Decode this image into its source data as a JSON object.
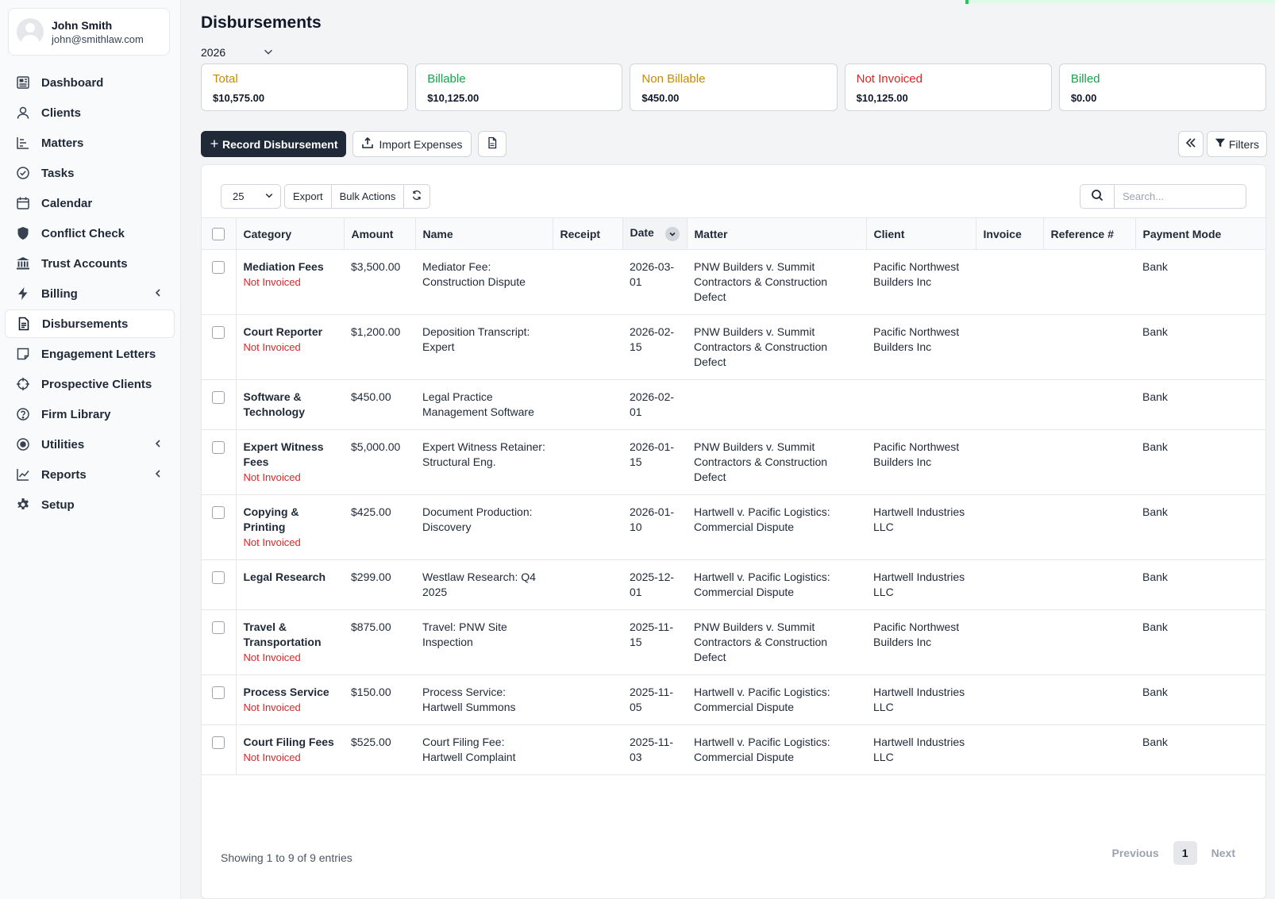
{
  "user": {
    "name": "John Smith",
    "email": "john@smithlaw.com"
  },
  "nav": [
    {
      "label": "Dashboard",
      "icon": "dashboard-icon"
    },
    {
      "label": "Clients",
      "icon": "user-icon"
    },
    {
      "label": "Matters",
      "icon": "matters-icon"
    },
    {
      "label": "Tasks",
      "icon": "check-circle-icon"
    },
    {
      "label": "Calendar",
      "icon": "calendar-icon"
    },
    {
      "label": "Conflict Check",
      "icon": "shield-icon"
    },
    {
      "label": "Trust Accounts",
      "icon": "bank-icon"
    },
    {
      "label": "Billing",
      "icon": "bolt-icon",
      "chevron": true
    },
    {
      "label": "Disbursements",
      "icon": "document-icon",
      "active": true
    },
    {
      "label": "Engagement Letters",
      "icon": "note-icon"
    },
    {
      "label": "Prospective Clients",
      "icon": "crosshair-icon"
    },
    {
      "label": "Firm Library",
      "icon": "help-circle-icon"
    },
    {
      "label": "Utilities",
      "icon": "target-icon",
      "chevron": true
    },
    {
      "label": "Reports",
      "icon": "line-chart-icon",
      "chevron": true
    },
    {
      "label": "Setup",
      "icon": "gear-icon"
    }
  ],
  "page": {
    "title": "Disbursements",
    "year": "2026"
  },
  "stats": [
    {
      "label": "Total",
      "value": "$10,575.00",
      "color": "#ca8a04"
    },
    {
      "label": "Billable",
      "value": "$10,125.00",
      "color": "#16a34a"
    },
    {
      "label": "Non Billable",
      "value": "$450.00",
      "color": "#ca8a04"
    },
    {
      "label": "Not Invoiced",
      "value": "$10,125.00",
      "color": "#dc2626"
    },
    {
      "label": "Billed",
      "value": "$0.00",
      "color": "#16a34a"
    }
  ],
  "toolbar": {
    "record_label": "Record Disbursement",
    "import_label": "Import Expenses",
    "filters_label": "Filters"
  },
  "table_tools": {
    "page_length": "25",
    "export_label": "Export",
    "bulk_label": "Bulk Actions",
    "search_placeholder": "Search..."
  },
  "columns": [
    "Category",
    "Amount",
    "Name",
    "Receipt",
    "Date",
    "Matter",
    "Client",
    "Invoice",
    "Reference #",
    "Payment Mode"
  ],
  "rows": [
    {
      "category": "Mediation Fees",
      "status": "Not Invoiced",
      "amount": "$3,500.00",
      "name": "Mediator Fee: Construction Dispute",
      "receipt": "",
      "date": "2026-03-01",
      "matter": "PNW Builders v. Summit Contractors & Construction Defect",
      "client": "Pacific Northwest Builders Inc",
      "invoice": "",
      "reference": "",
      "payment_mode": "Bank"
    },
    {
      "category": "Court Reporter",
      "status": "Not Invoiced",
      "amount": "$1,200.00",
      "name": "Deposition Transcript: Expert",
      "receipt": "",
      "date": "2026-02-15",
      "matter": "PNW Builders v. Summit Contractors & Construction Defect",
      "client": "Pacific Northwest Builders Inc",
      "invoice": "",
      "reference": "",
      "payment_mode": "Bank"
    },
    {
      "category": "Software & Technology",
      "status": "",
      "amount": "$450.00",
      "name": "Legal Practice Management Software",
      "receipt": "",
      "date": "2026-02-01",
      "matter": "",
      "client": "",
      "invoice": "",
      "reference": "",
      "payment_mode": "Bank"
    },
    {
      "category": "Expert Witness Fees",
      "status": "Not Invoiced",
      "amount": "$5,000.00",
      "name": "Expert Witness Retainer: Structural Eng.",
      "receipt": "",
      "date": "2026-01-15",
      "matter": "PNW Builders v. Summit Contractors & Construction Defect",
      "client": "Pacific Northwest Builders Inc",
      "invoice": "",
      "reference": "",
      "payment_mode": "Bank"
    },
    {
      "category": "Copying & Printing",
      "status": "Not Invoiced",
      "amount": "$425.00",
      "name": "Document Production: Discovery",
      "receipt": "",
      "date": "2026-01-10",
      "matter": "Hartwell v. Pacific Logistics: Commercial Dispute",
      "client": "Hartwell Industries LLC",
      "invoice": "",
      "reference": "",
      "payment_mode": "Bank"
    },
    {
      "category": "Legal Research",
      "status": "",
      "amount": "$299.00",
      "name": "Westlaw Research: Q4 2025",
      "receipt": "",
      "date": "2025-12-01",
      "matter": "Hartwell v. Pacific Logistics: Commercial Dispute",
      "client": "Hartwell Industries LLC",
      "invoice": "",
      "reference": "",
      "payment_mode": "Bank"
    },
    {
      "category": "Travel & Transportation",
      "status": "Not Invoiced",
      "amount": "$875.00",
      "name": "Travel: PNW Site Inspection",
      "receipt": "",
      "date": "2025-11-15",
      "matter": "PNW Builders v. Summit Contractors & Construction Defect",
      "client": "Pacific Northwest Builders Inc",
      "invoice": "",
      "reference": "",
      "payment_mode": "Bank"
    },
    {
      "category": "Process Service",
      "status": "Not Invoiced",
      "amount": "$150.00",
      "name": "Process Service: Hartwell Summons",
      "receipt": "",
      "date": "2025-11-05",
      "matter": "Hartwell v. Pacific Logistics: Commercial Dispute",
      "client": "Hartwell Industries LLC",
      "invoice": "",
      "reference": "",
      "payment_mode": "Bank"
    },
    {
      "category": "Court Filing Fees",
      "status": "Not Invoiced",
      "amount": "$525.00",
      "name": "Court Filing Fee: Hartwell Complaint",
      "receipt": "",
      "date": "2025-11-03",
      "matter": "Hartwell v. Pacific Logistics: Commercial Dispute",
      "client": "Hartwell Industries LLC",
      "invoice": "",
      "reference": "",
      "payment_mode": "Bank"
    }
  ],
  "footer": {
    "info": "Showing 1 to 9 of 9 entries",
    "previous_label": "Previous",
    "current_page": "1",
    "next_label": "Next"
  }
}
